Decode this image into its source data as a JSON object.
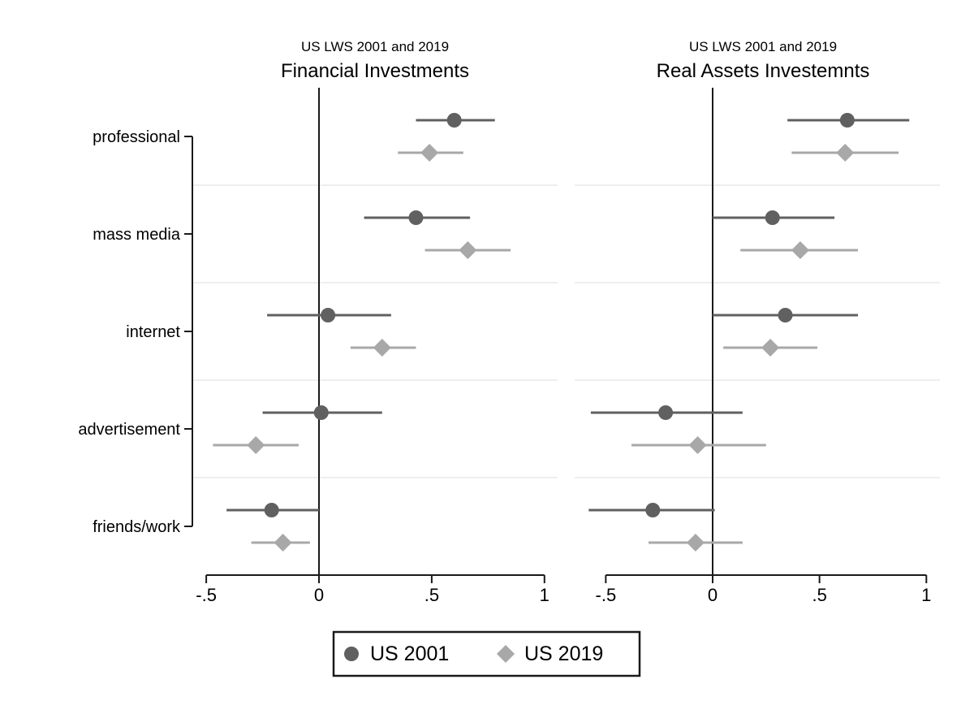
{
  "colors": {
    "background": "#ffffff",
    "axis": "#1a1a1a",
    "gridline": "#e8e8e8",
    "text": "#000000",
    "series_2001": "#606060",
    "series_2019": "#a8a8a8"
  },
  "legend": {
    "items": [
      {
        "label": "US 2001",
        "marker": "circle",
        "color": "#606060"
      },
      {
        "label": "US 2019",
        "marker": "diamond",
        "color": "#a8a8a8"
      }
    ]
  },
  "chart_data": {
    "type": "scatter",
    "subtype": "coefficient-dot-whisker",
    "categories": [
      "professional",
      "mass media",
      "internet",
      "advertisement",
      "friends/work"
    ],
    "x_ticks": [
      "-.5",
      "0",
      ".5",
      "1"
    ],
    "x_tick_values": [
      -0.5,
      0,
      0.5,
      1
    ],
    "grid": "light horizontal separators between categories, vertical reference line at 0",
    "legend_position": "bottom center, boxed",
    "panels": [
      {
        "subtitle": "US LWS 2001 and 2019",
        "title": "Financial Investments",
        "xlim": [
          -0.56,
          1.06
        ],
        "series": [
          {
            "name": "US 2001",
            "marker": "circle",
            "color": "#606060",
            "estimates": [
              0.6,
              0.43,
              0.04,
              0.01,
              -0.21
            ],
            "ci_low": [
              0.43,
              0.2,
              -0.23,
              -0.25,
              -0.41
            ],
            "ci_high": [
              0.78,
              0.67,
              0.32,
              0.28,
              0.0
            ]
          },
          {
            "name": "US 2019",
            "marker": "diamond",
            "color": "#a8a8a8",
            "estimates": [
              0.49,
              0.66,
              0.28,
              -0.28,
              -0.16
            ],
            "ci_low": [
              0.35,
              0.47,
              0.14,
              -0.47,
              -0.3
            ],
            "ci_high": [
              0.64,
              0.85,
              0.43,
              -0.09,
              -0.04
            ]
          }
        ]
      },
      {
        "subtitle": "US LWS 2001 and 2019",
        "title": "Real Assets Investemnts",
        "xlim": [
          -0.65,
          1.06
        ],
        "series": [
          {
            "name": "US 2001",
            "marker": "circle",
            "color": "#606060",
            "estimates": [
              0.63,
              0.28,
              0.34,
              -0.22,
              -0.28
            ],
            "ci_low": [
              0.35,
              0.0,
              0.0,
              -0.57,
              -0.58
            ],
            "ci_high": [
              0.92,
              0.57,
              0.68,
              0.14,
              0.01
            ]
          },
          {
            "name": "US 2019",
            "marker": "diamond",
            "color": "#a8a8a8",
            "estimates": [
              0.62,
              0.41,
              0.27,
              -0.07,
              -0.08
            ],
            "ci_low": [
              0.37,
              0.13,
              0.05,
              -0.38,
              -0.3
            ],
            "ci_high": [
              0.87,
              0.68,
              0.49,
              0.25,
              0.14
            ]
          }
        ]
      }
    ]
  }
}
